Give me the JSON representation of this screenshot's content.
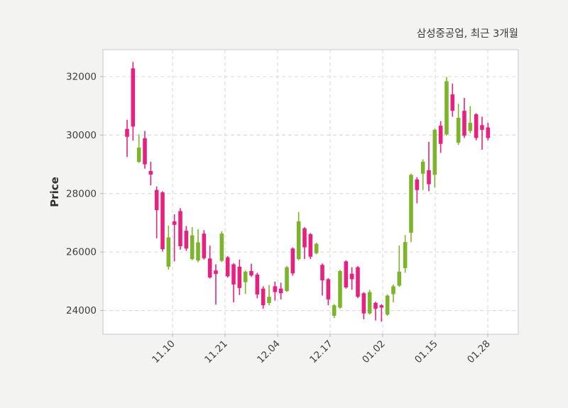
{
  "chart_data": {
    "type": "candlestick",
    "title": "삼성중공업, 최근 3개월",
    "ylabel": "Price",
    "y_ticks": [
      24000,
      26000,
      28000,
      30000,
      32000
    ],
    "ylim": [
      23190,
      32920
    ],
    "x_ticks": [
      {
        "pos": 7.68,
        "label": "11.10"
      },
      {
        "pos": 16.56,
        "label": "11.21"
      },
      {
        "pos": 25.44,
        "label": "12.04"
      },
      {
        "pos": 34.32,
        "label": "12.17"
      },
      {
        "pos": 43.2,
        "label": "01.02"
      },
      {
        "pos": 52.08,
        "label": "01.15"
      },
      {
        "pos": 60.96,
        "label": "01.28"
      }
    ],
    "up_color": "#7cb52b",
    "down_color": "#e7217f",
    "grid": true,
    "legend_position": null,
    "candles_format": [
      "open",
      "high",
      "low",
      "close"
    ],
    "candles": [
      [
        30210,
        30520,
        29250,
        29940
      ],
      [
        32280,
        32500,
        29810,
        30290
      ],
      [
        29080,
        30020,
        29050,
        29570
      ],
      [
        29890,
        30140,
        28850,
        29000
      ],
      [
        28770,
        29090,
        28280,
        28650
      ],
      [
        28120,
        28240,
        26470,
        27430
      ],
      [
        28040,
        28080,
        26020,
        26100
      ],
      [
        25500,
        26900,
        25400,
        26500
      ],
      [
        27050,
        27290,
        25680,
        26930
      ],
      [
        27400,
        27500,
        26080,
        26200
      ],
      [
        26730,
        26890,
        26040,
        26120
      ],
      [
        25760,
        26850,
        25720,
        26570
      ],
      [
        25710,
        26780,
        25650,
        26330
      ],
      [
        26630,
        26750,
        25740,
        25790
      ],
      [
        25780,
        26220,
        25090,
        25130
      ],
      [
        25370,
        25580,
        24200,
        25250
      ],
      [
        25700,
        26710,
        25660,
        26630
      ],
      [
        25820,
        25860,
        25130,
        25170
      ],
      [
        25580,
        25620,
        24280,
        24890
      ],
      [
        25500,
        25740,
        24530,
        24770
      ],
      [
        24970,
        25370,
        24570,
        25330
      ],
      [
        25350,
        25600,
        25150,
        25200
      ],
      [
        25230,
        25290,
        24420,
        24550
      ],
      [
        24750,
        24830,
        24060,
        24180
      ],
      [
        24260,
        24870,
        24180,
        24470
      ],
      [
        24830,
        24990,
        24340,
        24630
      ],
      [
        24750,
        24950,
        24380,
        24590
      ],
      [
        24670,
        25520,
        24630,
        25480
      ],
      [
        26120,
        26160,
        25190,
        25270
      ],
      [
        25760,
        27370,
        25720,
        27050
      ],
      [
        26810,
        26850,
        25760,
        26160
      ],
      [
        26610,
        26650,
        25760,
        25840
      ],
      [
        25960,
        26320,
        25920,
        26280
      ],
      [
        25560,
        25610,
        24510,
        25030
      ],
      [
        25070,
        25110,
        24180,
        24380
      ],
      [
        23820,
        24220,
        23740,
        24180
      ],
      [
        24100,
        25390,
        24060,
        25350
      ],
      [
        25680,
        25720,
        24750,
        24790
      ],
      [
        25260,
        25480,
        24710,
        25070
      ],
      [
        25480,
        25520,
        24420,
        24470
      ],
      [
        24590,
        24630,
        23700,
        23900
      ],
      [
        23900,
        24710,
        23860,
        24630
      ],
      [
        24260,
        24300,
        23660,
        24060
      ],
      [
        24180,
        24220,
        23620,
        24100
      ],
      [
        23860,
        24550,
        23820,
        24510
      ],
      [
        24560,
        24890,
        24280,
        24830
      ],
      [
        24850,
        26220,
        24810,
        25330
      ],
      [
        25450,
        26580,
        25290,
        26340
      ],
      [
        26660,
        28680,
        26340,
        28640
      ],
      [
        28480,
        28560,
        27670,
        28120
      ],
      [
        28680,
        29170,
        28120,
        29090
      ],
      [
        28800,
        29770,
        28080,
        28320
      ],
      [
        28640,
        30220,
        28200,
        30180
      ],
      [
        30320,
        30480,
        29390,
        29700
      ],
      [
        30020,
        31990,
        29980,
        31840
      ],
      [
        31390,
        31760,
        30630,
        30830
      ],
      [
        29740,
        31070,
        29660,
        30590
      ],
      [
        30830,
        31270,
        29900,
        29980
      ],
      [
        30140,
        30990,
        30060,
        30420
      ],
      [
        30710,
        30750,
        29820,
        29900
      ],
      [
        30340,
        30630,
        29500,
        30180
      ],
      [
        30260,
        30420,
        29820,
        29900
      ]
    ]
  }
}
